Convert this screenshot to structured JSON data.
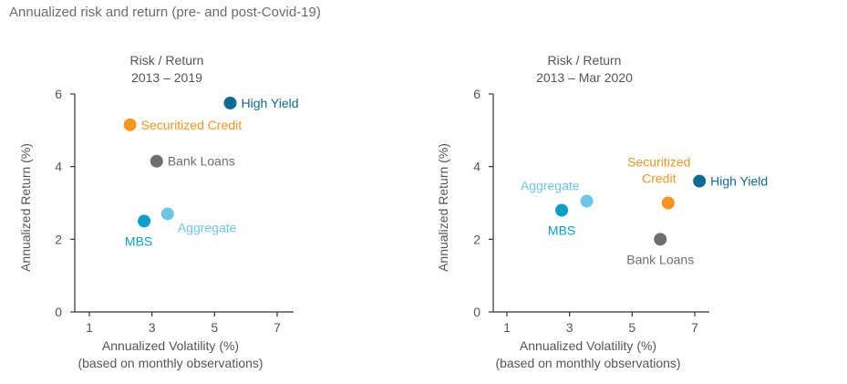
{
  "figure_title": "Annualized risk and return (pre- and post-Covid-19)",
  "colors": {
    "axis": "#333333",
    "text": "#555555",
    "High Yield": "#0d6b94",
    "Securitized Credit": "#f7941d",
    "Bank Loans": "#6d6e71",
    "MBS": "#0aa0c8",
    "Aggregate": "#6ec6e6"
  },
  "chart_data": [
    {
      "type": "scatter",
      "title_lines": [
        "Risk / Return",
        "2013 – 2019"
      ],
      "xlabel_lines": [
        "Annualized Volatility (%)",
        "(based on monthly observations)"
      ],
      "ylabel": "Annualized Return (%)",
      "xlim": [
        0,
        7
      ],
      "ylim": [
        0,
        6
      ],
      "xticks": [
        1,
        3,
        5,
        7
      ],
      "yticks": [
        0,
        2,
        4,
        6
      ],
      "grid": false,
      "points": [
        {
          "name": "High Yield",
          "x": 5.5,
          "y": 5.75,
          "label_lines": [
            "High Yield"
          ],
          "label_pos": "right"
        },
        {
          "name": "Securitized Credit",
          "x": 2.3,
          "y": 5.15,
          "label_lines": [
            "Securitized Credit"
          ],
          "label_pos": "right"
        },
        {
          "name": "Bank Loans",
          "x": 3.15,
          "y": 4.15,
          "label_lines": [
            "Bank Loans"
          ],
          "label_pos": "right"
        },
        {
          "name": "MBS",
          "x": 2.75,
          "y": 2.5,
          "label_lines": [
            "MBS"
          ],
          "label_pos": "below-left"
        },
        {
          "name": "Aggregate",
          "x": 3.5,
          "y": 2.7,
          "label_lines": [
            "Aggregate"
          ],
          "label_pos": "below-right"
        }
      ]
    },
    {
      "type": "scatter",
      "title_lines": [
        "Risk / Return",
        "2013 – Mar 2020"
      ],
      "xlabel_lines": [
        "Annualized Volatility (%)",
        "(based on monthly observations)"
      ],
      "ylabel": "Annualized Return (%)",
      "xlim": [
        0,
        7
      ],
      "ylim": [
        0,
        6
      ],
      "xticks": [
        1,
        3,
        5,
        7
      ],
      "yticks": [
        0,
        2,
        4,
        6
      ],
      "grid": false,
      "points": [
        {
          "name": "High Yield",
          "x": 7.15,
          "y": 3.6,
          "label_lines": [
            "High Yield"
          ],
          "label_pos": "right"
        },
        {
          "name": "Securitized Credit",
          "x": 6.15,
          "y": 3.0,
          "label_lines": [
            "Securitized",
            "Credit"
          ],
          "label_pos": "above"
        },
        {
          "name": "Bank Loans",
          "x": 5.9,
          "y": 2.0,
          "label_lines": [
            "Bank Loans"
          ],
          "label_pos": "below"
        },
        {
          "name": "MBS",
          "x": 2.75,
          "y": 2.8,
          "label_lines": [
            "MBS"
          ],
          "label_pos": "below"
        },
        {
          "name": "Aggregate",
          "x": 3.55,
          "y": 3.05,
          "label_lines": [
            "Aggregate"
          ],
          "label_pos": "above-left"
        }
      ]
    }
  ]
}
